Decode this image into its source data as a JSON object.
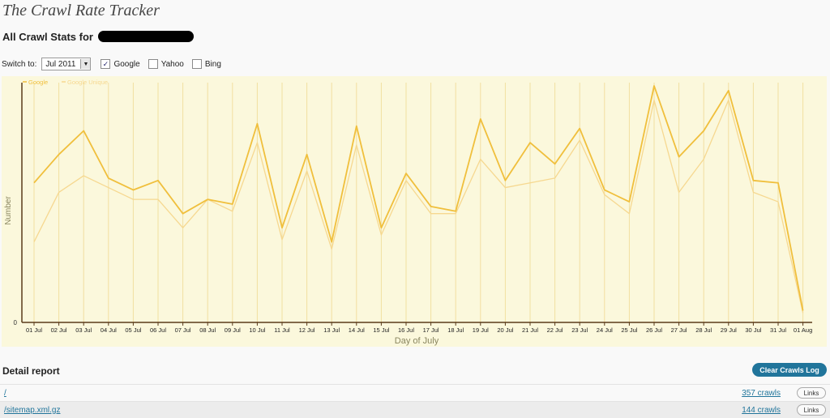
{
  "app_title": "The Crawl Rate Tracker",
  "subtitle": "All Crawl Stats for",
  "switch": {
    "label": "Switch to:",
    "month": "Jul 2011",
    "checkboxes": [
      {
        "label": "Google",
        "checked": true
      },
      {
        "label": "Yahoo",
        "checked": false
      },
      {
        "label": "Bing",
        "checked": false
      }
    ]
  },
  "chart_data": {
    "type": "line",
    "xlabel": "Day of July",
    "ylabel": "Number",
    "categories": [
      "01 Jul",
      "02 Jul",
      "03 Jul",
      "04 Jul",
      "05 Jul",
      "06 Jul",
      "07 Jul",
      "08 Jul",
      "09 Jul",
      "10 Jul",
      "11 Jul",
      "12 Jul",
      "13 Jul",
      "14 Jul",
      "15 Jul",
      "16 Jul",
      "17 Jul",
      "18 Jul",
      "19 Jul",
      "20 Jul",
      "21 Jul",
      "22 Jul",
      "23 Jul",
      "24 Jul",
      "25 Jul",
      "26 Jul",
      "27 Jul",
      "28 Jul",
      "29 Jul",
      "30 Jul",
      "31 Jul",
      "01 Aug"
    ],
    "y_tick_labels": [
      "0"
    ],
    "ylim": [
      0,
      100
    ],
    "grid": true,
    "legend_position": "top-left",
    "series": [
      {
        "name": "Google",
        "color": "#f0bf3c",
        "values": [
          59,
          71,
          81,
          61,
          56,
          60,
          46,
          52,
          50,
          84,
          40,
          71,
          34,
          83,
          40,
          63,
          49,
          47,
          86,
          60,
          76,
          67,
          82,
          56,
          51,
          100,
          70,
          81,
          98,
          60,
          59,
          5
        ]
      },
      {
        "name": "Google Unique",
        "color": "#f6d890",
        "values": [
          34,
          55,
          62,
          57,
          52,
          52,
          40,
          52,
          47,
          76,
          35,
          64,
          31,
          75,
          37,
          60,
          46,
          46,
          69,
          57,
          59,
          61,
          77,
          54,
          46,
          94,
          55,
          69,
          94,
          55,
          51,
          4
        ]
      }
    ]
  },
  "detail": {
    "title": "Detail report",
    "clear_button": "Clear Crawls Log",
    "rows": [
      {
        "path": "/",
        "crawls": "357 crawls",
        "links": "Links"
      },
      {
        "path": "/sitemap.xml.gz",
        "crawls": "144 crawls",
        "links": "Links"
      }
    ]
  }
}
